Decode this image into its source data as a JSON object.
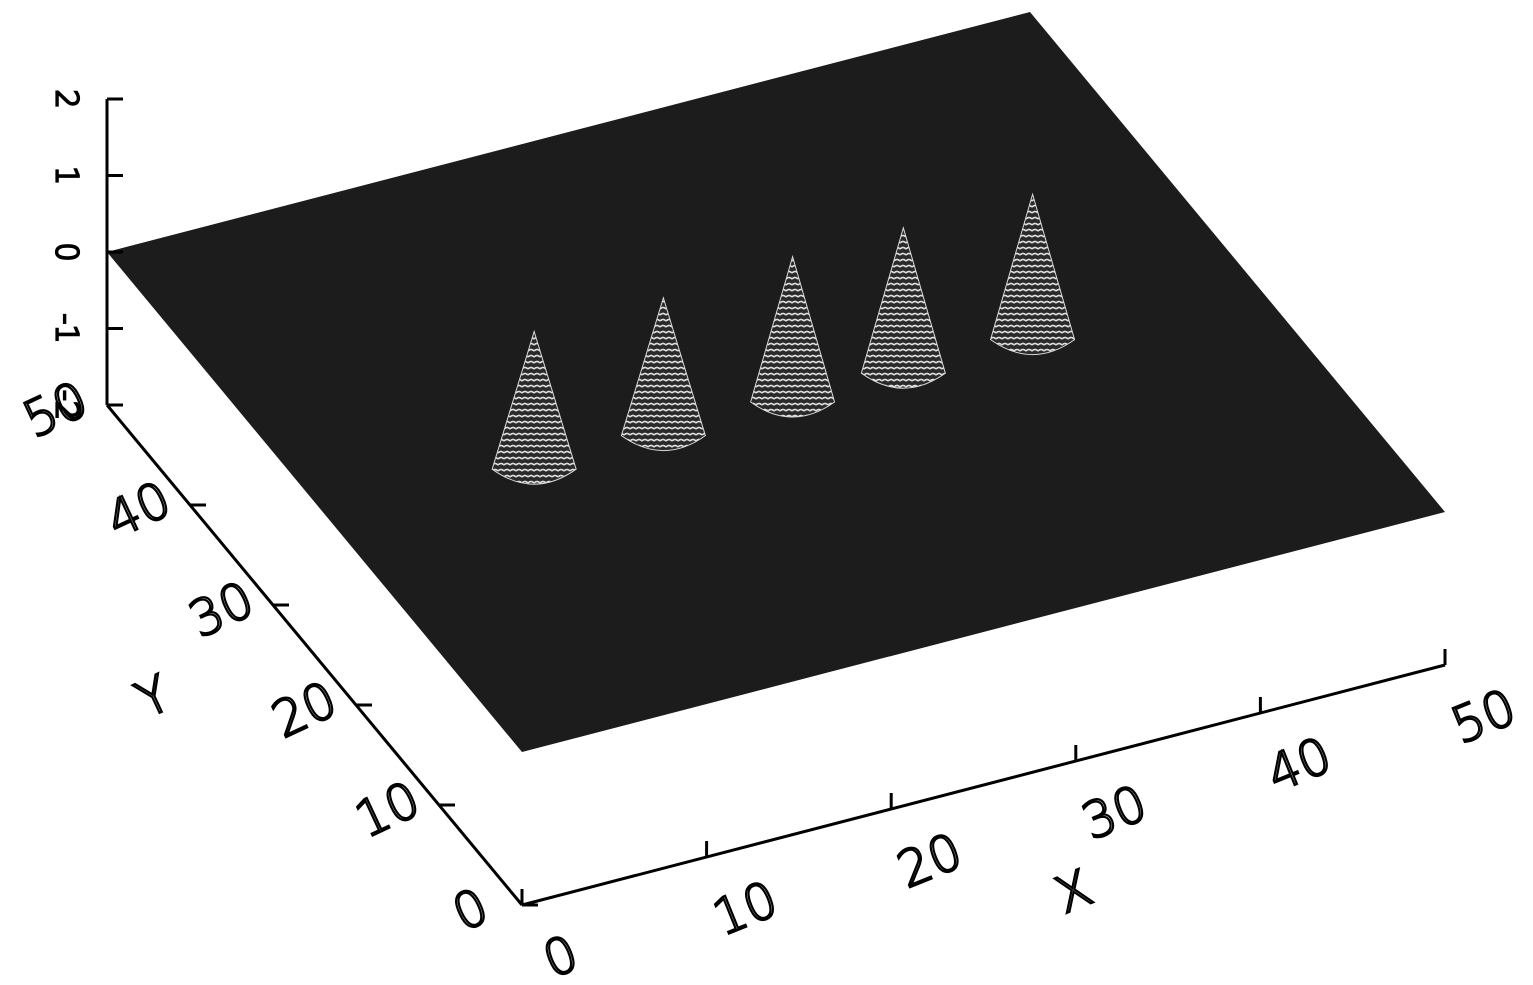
{
  "chart_data": {
    "type": "surface",
    "x_label": "X",
    "y_label": "Y",
    "xlim": [
      0,
      50
    ],
    "ylim": [
      0,
      50
    ],
    "zlim": [
      -2,
      2
    ],
    "xticks": [
      0,
      10,
      20,
      30,
      40,
      50
    ],
    "yticks": [
      0,
      10,
      20,
      30,
      40,
      50
    ],
    "zticks": [
      -2,
      -1,
      0,
      1,
      2
    ],
    "surface_color": "#1c1c1c",
    "peak_color": "#d8d8d8",
    "peaks": {
      "x": [
        11,
        18,
        25,
        31,
        38
      ],
      "y": [
        23,
        23,
        23,
        23,
        23
      ],
      "z": [
        1.8,
        1.8,
        1.9,
        1.9,
        1.9
      ]
    }
  }
}
